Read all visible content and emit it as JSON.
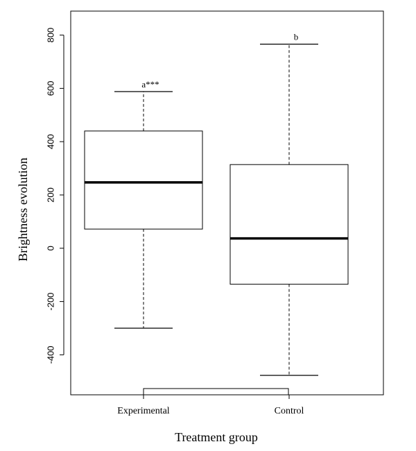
{
  "chart_data": {
    "type": "boxplot",
    "title": "",
    "xlabel": "Treatment group",
    "ylabel": "Brightness evolution",
    "ylim": [
      -550,
      890
    ],
    "yticks": [
      -400,
      -200,
      0,
      200,
      400,
      600,
      800
    ],
    "ytick_labels": [
      "-400",
      "-200",
      "0",
      "200",
      "400",
      "600",
      "800"
    ],
    "categories": [
      "Experimental",
      "Control"
    ],
    "boxes": [
      {
        "category": "Experimental",
        "whisker_low": -300,
        "q1": 72,
        "median": 247,
        "q3": 440,
        "whisker_high": 588,
        "annotation": "a***"
      },
      {
        "category": "Control",
        "whisker_low": -477,
        "q1": -135,
        "median": 37,
        "q3": 314,
        "whisker_high": 766,
        "annotation": "b"
      }
    ],
    "grid": false,
    "legend": "none"
  }
}
